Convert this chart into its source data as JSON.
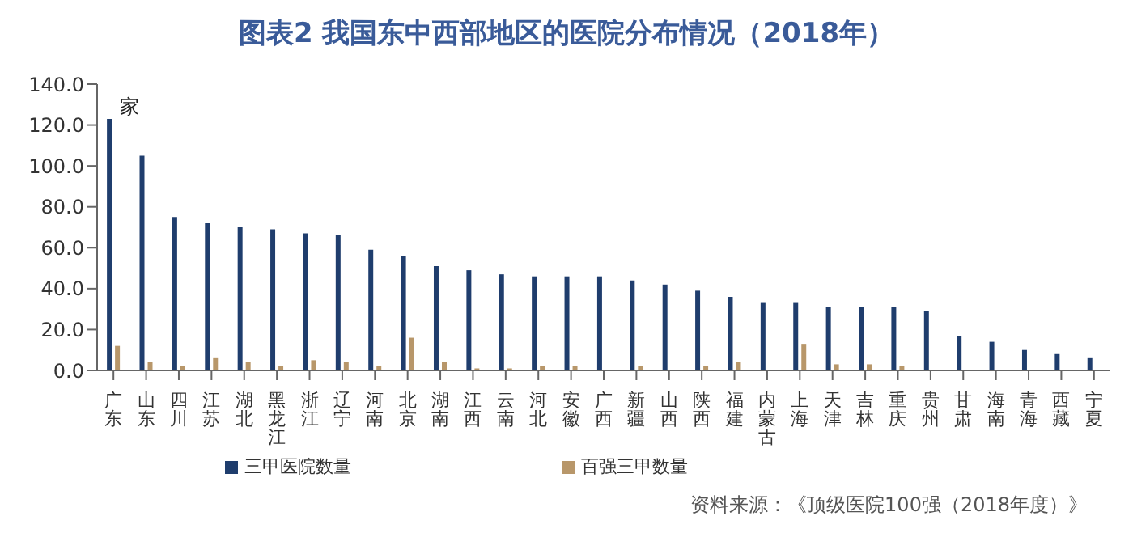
{
  "chart_data": {
    "type": "bar",
    "title": "图表2  我国东中西部地区的医院分布情况（2018年）",
    "ylabel": "家",
    "categories": [
      "广东",
      "山东",
      "四川",
      "江苏",
      "湖北",
      "黑龙江",
      "浙江",
      "辽宁",
      "河南",
      "北京",
      "湖南",
      "江西",
      "云南",
      "河北",
      "安徽",
      "广西",
      "新疆",
      "山西",
      "陕西",
      "福建",
      "内蒙古",
      "上海",
      "天津",
      "吉林",
      "重庆",
      "贵州",
      "甘肃",
      "海南",
      "青海",
      "西藏",
      "宁夏"
    ],
    "series": [
      {
        "name": "三甲医院数量",
        "color": "#1f3d6d",
        "values": [
          123,
          105,
          75,
          72,
          70,
          69,
          67,
          66,
          59,
          56,
          51,
          49,
          47,
          46,
          46,
          46,
          44,
          42,
          39,
          36,
          33,
          33,
          31,
          31,
          31,
          29,
          17,
          14,
          10,
          8,
          6
        ]
      },
      {
        "name": "百强三甲数量",
        "color": "#b8976a",
        "values": [
          12,
          4,
          2,
          6,
          4,
          2,
          5,
          4,
          2,
          16,
          4,
          1,
          1,
          2,
          2,
          0,
          2,
          0,
          2,
          4,
          0,
          13,
          3,
          3,
          2,
          0,
          0,
          0,
          0,
          0,
          0
        ]
      }
    ],
    "ylim": [
      0,
      140
    ],
    "yticks": [
      {
        "value": 0,
        "label": "0.0"
      },
      {
        "value": 20,
        "label": "20.0"
      },
      {
        "value": 40,
        "label": "40.0"
      },
      {
        "value": 60,
        "label": "60.0"
      },
      {
        "value": 80,
        "label": "80.0"
      },
      {
        "value": 100,
        "label": "100.0"
      },
      {
        "value": 120,
        "label": "120.0"
      },
      {
        "value": 140,
        "label": "140.0"
      }
    ],
    "grid": false,
    "legend": "bottom",
    "annotations": [
      "资料来源：《顶级医院100强（2018年度）》"
    ]
  }
}
